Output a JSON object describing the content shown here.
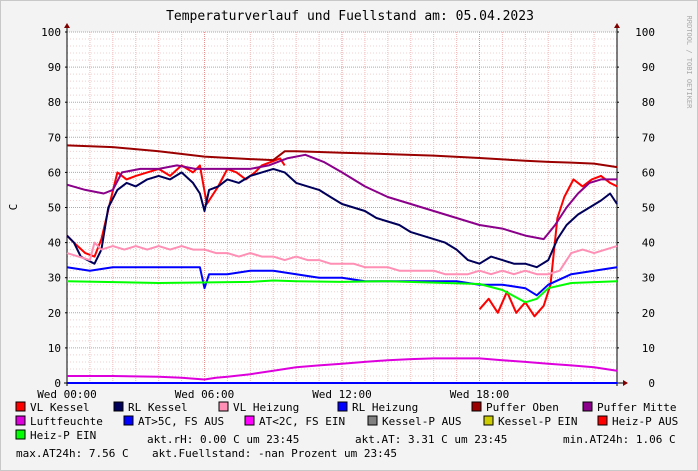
{
  "chart_data": {
    "type": "line",
    "title": "Temperaturverlauf und Fuellstand am: 05.04.2023",
    "watermark": "RRDTOOL / TOBI OETIKER",
    "ylabel": "C",
    "ylim": [
      0,
      100
    ],
    "y_ticks": [
      "0",
      "10",
      "20",
      "30",
      "40",
      "50",
      "60",
      "70",
      "80",
      "90",
      "100"
    ],
    "x_range_hours": [
      0,
      24.0
    ],
    "x_ticks": [
      {
        "h": 0,
        "label": "Wed 00:00"
      },
      {
        "h": 6,
        "label": "Wed 06:00"
      },
      {
        "h": 12,
        "label": "Wed 12:00"
      },
      {
        "h": 18,
        "label": "Wed 18:00"
      }
    ],
    "grid": true,
    "colors": {
      "vl_kessel": "#ff0000",
      "rl_kessel": "#00005a",
      "vl_heizung": "#ff8fb4",
      "rl_heizung": "#0000ff",
      "puffer_oben": "#9b0000",
      "puffer_mitte": "#8a008a",
      "luftfeuchte": "#dd00dd",
      "at_gt5": "#0000ff",
      "at_lt2": "#ff00ff",
      "kessel_p_aus": "#808080",
      "kessel_p_ein": "#cccc00",
      "heiz_p_aus": "#ff0000",
      "heiz_p_ein": "#00ff00"
    },
    "series": [
      {
        "name": "VL Kessel",
        "key": "vl_kessel",
        "x": [
          0,
          0.3,
          0.8,
          1.2,
          1.5,
          1.9,
          2.2,
          2.6,
          3.0,
          3.5,
          4.0,
          4.5,
          5.0,
          5.5,
          5.8,
          6.1,
          6.6,
          7.0,
          7.4,
          7.8,
          8.2,
          8.5,
          8.9,
          9.3,
          9.5
        ],
        "y": [
          42,
          40,
          37,
          36,
          41,
          52,
          60,
          58,
          59,
          60,
          61,
          59,
          62,
          60,
          62,
          51,
          56,
          61,
          60,
          58,
          60,
          62,
          63,
          64,
          62
        ]
      },
      {
        "name": "VL Kessel",
        "key": "vl_kessel",
        "x": [
          18.0,
          18.4,
          18.8,
          19.2,
          19.6,
          20.0,
          20.4,
          20.8,
          21.1,
          21.4,
          21.7,
          22.1,
          22.5,
          22.9,
          23.3,
          23.7,
          24.0
        ],
        "y": [
          21,
          24,
          20,
          26,
          20,
          23,
          19,
          22,
          28,
          47,
          53,
          58,
          56,
          58,
          59,
          57,
          56
        ]
      },
      {
        "name": "RL Kessel",
        "key": "rl_kessel",
        "x": [
          0,
          0.3,
          0.6,
          0.9,
          1.2,
          1.5,
          1.8,
          2.2,
          2.6,
          3.0,
          3.5,
          4.0,
          4.5,
          5.0,
          5.5,
          5.8,
          6.0,
          6.2,
          6.6,
          7.0,
          7.5,
          8.0,
          8.5,
          9.0,
          9.5,
          10.0,
          10.5,
          11.0,
          11.5,
          12.0,
          12.5,
          13.0,
          13.5,
          14.0,
          14.5,
          15.0,
          15.5,
          16.0,
          16.5,
          17.0,
          17.5,
          18.0,
          18.5,
          19.0,
          19.5,
          20.0,
          20.5,
          21.0,
          21.4,
          21.8,
          22.3,
          22.8,
          23.3,
          23.7,
          24.0
        ],
        "y": [
          42,
          40,
          36,
          35,
          34,
          38,
          50,
          55,
          57,
          56,
          58,
          59,
          58,
          60,
          57,
          54,
          49,
          55,
          56,
          58,
          57,
          59,
          60,
          61,
          60,
          57,
          56,
          55,
          53,
          51,
          50,
          49,
          47,
          46,
          45,
          43,
          42,
          41,
          40,
          38,
          35,
          34,
          36,
          35,
          34,
          34,
          33,
          35,
          41,
          45,
          48,
          50,
          52,
          54,
          51
        ]
      },
      {
        "name": "VL Heizung",
        "key": "vl_heizung",
        "x": [
          0,
          0.5,
          1.0,
          1.2,
          1.5,
          2.0,
          2.5,
          3.0,
          3.5,
          4.0,
          4.5,
          5.0,
          5.5,
          6.0,
          6.5,
          7.0,
          7.5,
          8.0,
          8.5,
          9.0,
          9.5,
          10.0,
          10.5,
          11.0,
          11.5,
          12.0,
          12.5,
          13.0,
          13.5,
          14.0,
          14.5,
          15.0,
          15.5,
          16.0,
          16.5,
          17.0,
          17.5,
          18.0,
          18.5,
          19.0,
          19.5,
          20.0,
          20.5,
          21.0,
          21.5,
          22.0,
          22.5,
          23.0,
          23.5,
          24.0
        ],
        "y": [
          37,
          36,
          35,
          40,
          38,
          39,
          38,
          39,
          38,
          39,
          38,
          39,
          38,
          38,
          37,
          37,
          36,
          37,
          36,
          36,
          35,
          36,
          35,
          35,
          34,
          34,
          34,
          33,
          33,
          33,
          32,
          32,
          32,
          32,
          31,
          31,
          31,
          32,
          31,
          32,
          31,
          32,
          31,
          31,
          32,
          37,
          38,
          37,
          38,
          39
        ]
      },
      {
        "name": "RL Heizung",
        "key": "rl_heizung",
        "x": [
          0,
          1,
          2,
          3,
          4,
          5,
          5.8,
          6.0,
          6.2,
          7,
          8,
          9,
          10,
          11,
          12,
          13,
          14,
          15,
          16,
          17,
          18,
          19,
          20,
          20.5,
          21,
          22,
          23,
          24
        ],
        "y": [
          33,
          32,
          33,
          33,
          33,
          33,
          33,
          27,
          31,
          31,
          32,
          32,
          31,
          30,
          30,
          29,
          29,
          29,
          29,
          29,
          28,
          28,
          27,
          25,
          28,
          31,
          32,
          33
        ]
      },
      {
        "name": "Puffer Oben",
        "key": "puffer_oben",
        "x": [
          0,
          2,
          4,
          6,
          8,
          9,
          9.5,
          10,
          12,
          14,
          16,
          18,
          20,
          21,
          22,
          23,
          24
        ],
        "y": [
          67.7,
          67.2,
          66,
          64.5,
          63.8,
          63.5,
          66,
          66,
          65.6,
          65.2,
          64.8,
          64.1,
          63.3,
          63,
          62.8,
          62.5,
          61.5
        ]
      },
      {
        "name": "Puffer Mitte",
        "key": "puffer_mitte",
        "x": [
          0,
          0.8,
          1.6,
          2.0,
          2.4,
          3.2,
          4.0,
          4.8,
          5.6,
          6.4,
          7.2,
          8.0,
          8.8,
          9.6,
          10.4,
          11.2,
          12.0,
          13.0,
          14.0,
          15.0,
          16.0,
          17.0,
          18.0,
          19.0,
          20.0,
          20.8,
          21.3,
          21.8,
          22.3,
          22.8,
          23.3,
          24.0
        ],
        "y": [
          56.5,
          55,
          54,
          55,
          60,
          61,
          61,
          62,
          61,
          61,
          61,
          61,
          62,
          64,
          65,
          63,
          60,
          56,
          53,
          51,
          49,
          47,
          45,
          44,
          42,
          41,
          45,
          50,
          54,
          57,
          58,
          58
        ]
      },
      {
        "name": "Luftfeuchte",
        "key": "luftfeuchte",
        "x": [
          0,
          2,
          4,
          5,
          6,
          6.5,
          7,
          8,
          9,
          10,
          11,
          12,
          13,
          14,
          15,
          16,
          17,
          18,
          19,
          20,
          21,
          22,
          23,
          24
        ],
        "y": [
          2,
          2,
          1.8,
          1.5,
          1,
          1.5,
          1.8,
          2.5,
          3.5,
          4.5,
          5,
          5.5,
          6,
          6.5,
          6.8,
          7,
          7,
          7,
          6.5,
          6,
          5.5,
          5,
          4.5,
          3.5
        ]
      },
      {
        "name": "AT>5C, FS AUS",
        "key": "at_gt5",
        "x": [
          0,
          24.0
        ],
        "y": [
          0,
          0
        ]
      },
      {
        "name": "Heiz-P EIN",
        "key": "heiz_p_ein",
        "x": [
          0,
          4,
          8,
          9,
          10,
          12,
          14,
          16,
          18,
          19,
          20,
          20.5,
          21,
          22,
          24
        ],
        "y": [
          29,
          28.5,
          28.8,
          29.2,
          29,
          28.8,
          29,
          28.6,
          28.2,
          26.5,
          23,
          24,
          27,
          28.5,
          29
        ]
      }
    ],
    "legend": [
      {
        "label": "VL Kessel",
        "key": "vl_kessel"
      },
      {
        "label": "RL Kessel",
        "key": "rl_kessel"
      },
      {
        "label": "VL Heizung",
        "key": "vl_heizung"
      },
      {
        "label": "RL Heizung",
        "key": "rl_heizung"
      },
      {
        "label": "Puffer Oben",
        "key": "puffer_oben"
      },
      {
        "label": "Puffer Mitte",
        "key": "puffer_mitte"
      },
      {
        "label": "Luftfeuchte",
        "key": "luftfeuchte"
      },
      {
        "label": "AT>5C, FS AUS",
        "key": "at_gt5"
      },
      {
        "label": "AT<2C, FS EIN",
        "key": "at_lt2"
      },
      {
        "label": "Kessel-P AUS",
        "key": "kessel_p_aus"
      },
      {
        "label": "Kessel-P EIN",
        "key": "kessel_p_ein"
      },
      {
        "label": "Heiz-P AUS",
        "key": "heiz_p_aus"
      },
      {
        "label": "Heiz-P EIN",
        "key": "heiz_p_ein"
      }
    ],
    "stats": {
      "akt_rh": "akt.rH: 0.00 C um 23:45",
      "akt_at": "akt.AT: 3.31 C um 23:45",
      "min_at": "min.AT24h: 1.06 C",
      "max_at": "max.AT24h: 7.56 C",
      "fuellstand": "akt.Fuellstand: -nan Prozent um 23:45"
    }
  }
}
